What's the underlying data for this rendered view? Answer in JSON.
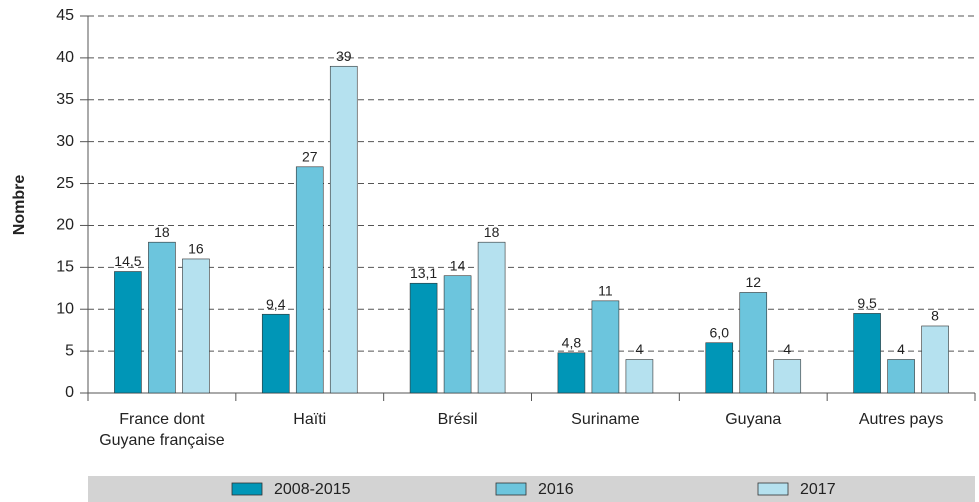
{
  "chart_data": {
    "type": "bar",
    "categories": [
      "France dont\nGuyane française",
      "Haïti",
      "Brésil",
      "Suriname",
      "Guyana",
      "Autres pays"
    ],
    "series": [
      {
        "name": "2008-2015",
        "color": "#0096b7",
        "values": [
          14.5,
          9.4,
          13.1,
          4.8,
          6.0,
          9.5
        ],
        "value_labels": [
          "14,5",
          "9,4",
          "13,1",
          "4,8",
          "6,0",
          "9,5"
        ]
      },
      {
        "name": "2016",
        "color": "#6cc5dd",
        "values": [
          18,
          27,
          14,
          11,
          12,
          4
        ]
      },
      {
        "name": "2017",
        "color": "#b5e1ef",
        "values": [
          16,
          39,
          18,
          4,
          4,
          8
        ]
      }
    ],
    "ylabel": "Nombre",
    "ylim": [
      0,
      45
    ],
    "yticks": [
      0,
      5,
      10,
      15,
      20,
      25,
      30,
      35,
      40,
      45
    ],
    "grid": true,
    "legend": "bottom"
  }
}
